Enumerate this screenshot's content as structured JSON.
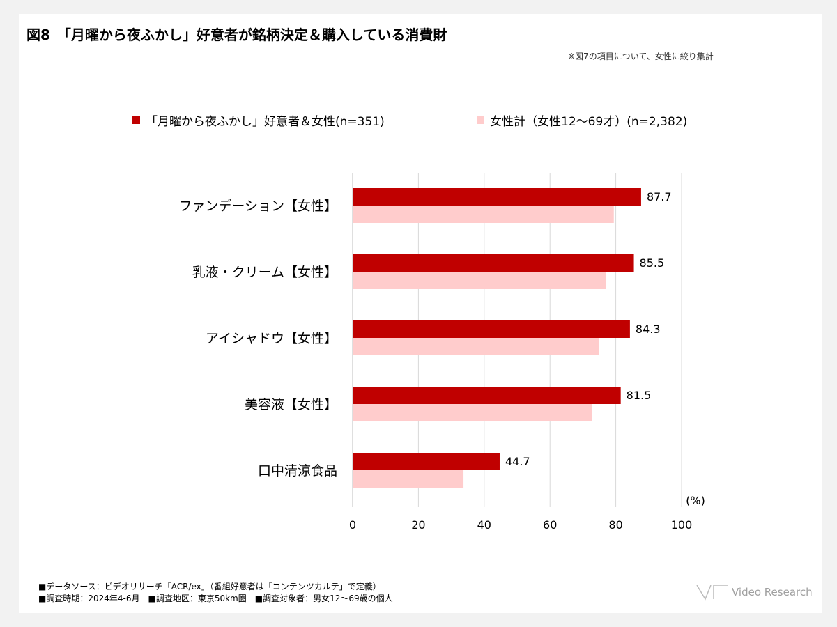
{
  "title": "図8　「月曜から夜ふかし」好意者が銘柄決定＆購入している消費財",
  "note": "※図7の項目について、女性に絞り集計",
  "footer": {
    "line1": "■データソース：ビデオリサーチ「ACR/ex」（番組好意者は「コンテンツカルテ」で定義）",
    "line2": "■調査時期：2024年4-6月　■調査地区：東京50km圏　■調査対象者：男女12〜69歳の個人"
  },
  "logo": "Video Research",
  "chart_data": {
    "type": "bar",
    "orientation": "horizontal",
    "categories": [
      "ファンデーション【女性】",
      "乳液・クリーム【女性】",
      "アイシャドウ【女性】",
      "美容液【女性】",
      "口中清涼食品"
    ],
    "series": [
      {
        "name": "「月曜から夜ふかし」好意者＆女性(n=351)",
        "color": "#c00000",
        "values": [
          87.7,
          85.5,
          84.3,
          81.5,
          44.7
        ],
        "labels": [
          "87.7",
          "85.5",
          "84.3",
          "81.5",
          "44.7"
        ]
      },
      {
        "name": "女性計（女性12〜69才）(n=2,382)",
        "color": "#ffcccc",
        "values": [
          79.4,
          77.1,
          75.0,
          72.7,
          33.7
        ]
      }
    ],
    "xlim": [
      0,
      100
    ],
    "xticks": [
      "0",
      "20",
      "40",
      "60",
      "80",
      "100"
    ],
    "unit_label": "(%)",
    "grid": true,
    "legend": "top"
  }
}
